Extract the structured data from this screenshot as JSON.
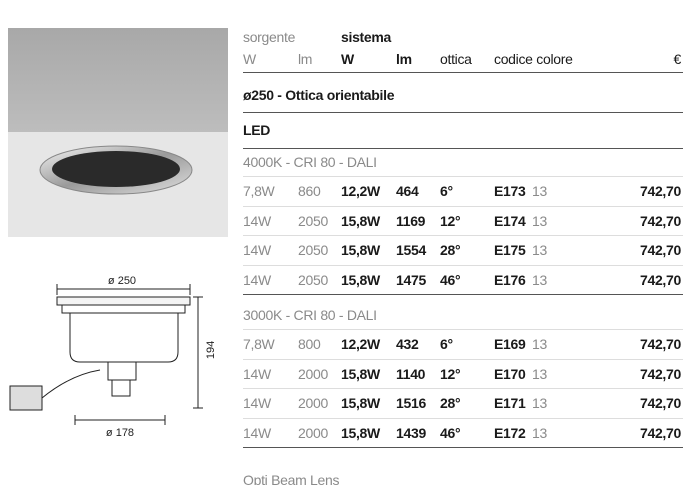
{
  "header": {
    "source": "sorgente",
    "system": "sistema",
    "columns": [
      "W",
      "lm",
      "W",
      "lm",
      "ottica",
      "codice colore",
      "€"
    ]
  },
  "title": "ø250 - Ottica orientabile",
  "subtitle": "LED",
  "groups": [
    {
      "label": "4000K - CRI 80 - DALI",
      "rows": [
        [
          "7,8W",
          "860",
          "12,2W",
          "464",
          "6°",
          "E173",
          "13",
          "742,70"
        ],
        [
          "14W",
          "2050",
          "15,8W",
          "1169",
          "12°",
          "E174",
          "13",
          "742,70"
        ],
        [
          "14W",
          "2050",
          "15,8W",
          "1554",
          "28°",
          "E175",
          "13",
          "742,70"
        ],
        [
          "14W",
          "2050",
          "15,8W",
          "1475",
          "46°",
          "E176",
          "13",
          "742,70"
        ]
      ]
    },
    {
      "label": "3000K - CRI 80 - DALI",
      "rows": [
        [
          "7,8W",
          "800",
          "12,2W",
          "432",
          "6°",
          "E169",
          "13",
          "742,70"
        ],
        [
          "14W",
          "2000",
          "15,8W",
          "1140",
          "12°",
          "E170",
          "13",
          "742,70"
        ],
        [
          "14W",
          "2000",
          "15,8W",
          "1516",
          "28°",
          "E171",
          "13",
          "742,70"
        ],
        [
          "14W",
          "2000",
          "15,8W",
          "1439",
          "46°",
          "E172",
          "13",
          "742,70"
        ]
      ]
    }
  ],
  "footnote": "Opti Beam Lens",
  "drawing": {
    "top_diameter": "ø 250",
    "height": "194",
    "bottom_diameter": "ø 178"
  }
}
